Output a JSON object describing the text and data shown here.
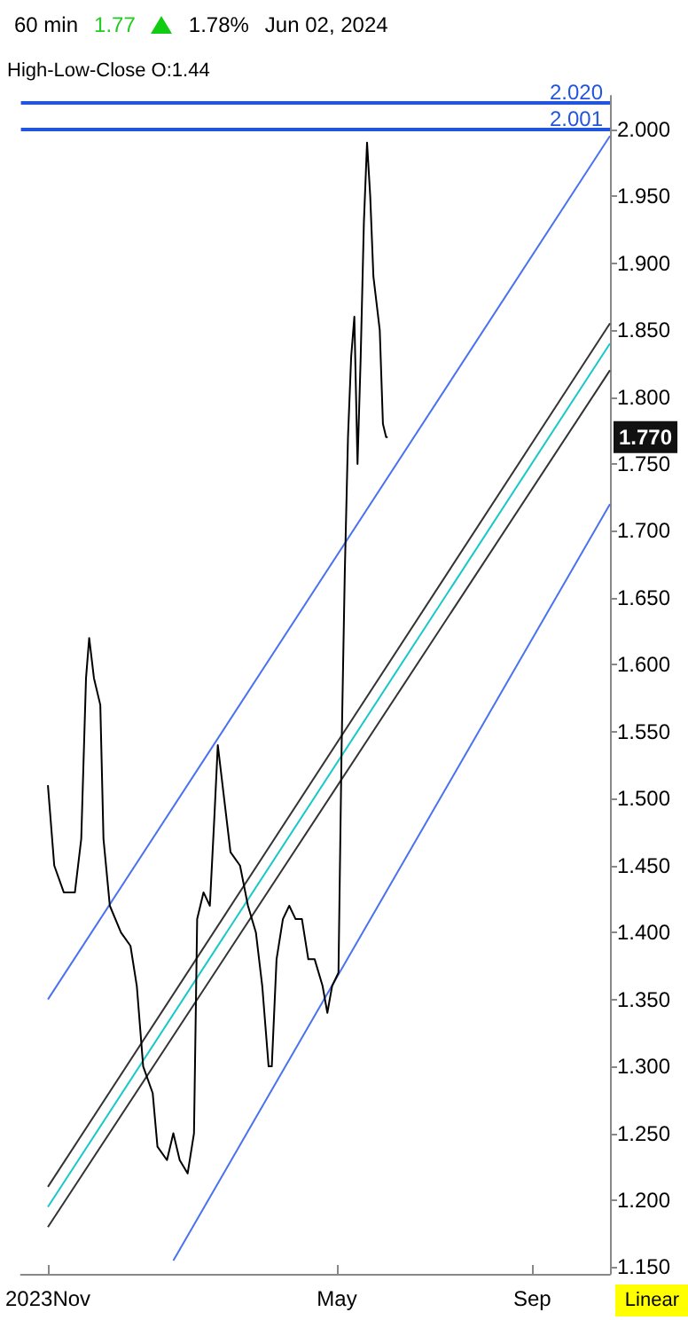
{
  "chart_data": {
    "type": "line",
    "annotations": [
      "60 min",
      "1.77",
      "1.78%",
      "Jun 02, 2024",
      "High-Low-Close",
      "O:1.44",
      "Linear",
      "1.770"
    ],
    "x": [
      "2023-11-01",
      "2023-11-05",
      "2023-11-11",
      "2023-11-18",
      "2023-11-22",
      "2023-11-25",
      "2023-11-27",
      "2023-11-30",
      "2023-12-04",
      "2023-12-06",
      "2023-12-10",
      "2023-12-17",
      "2023-12-23",
      "2023-12-27",
      "2023-12-31",
      "2024-01-06",
      "2024-01-09",
      "2024-01-15",
      "2024-01-19",
      "2024-01-23",
      "2024-01-28",
      "2024-02-01",
      "2024-02-03",
      "2024-02-07",
      "2024-02-11",
      "2024-02-14",
      "2024-02-16",
      "2024-02-20",
      "2024-02-24",
      "2024-03-01",
      "2024-03-06",
      "2024-03-11",
      "2024-03-15",
      "2024-03-19",
      "2024-03-21",
      "2024-03-24",
      "2024-03-28",
      "2024-04-01",
      "2024-04-05",
      "2024-04-09",
      "2024-04-13",
      "2024-04-17",
      "2024-04-22",
      "2024-04-25",
      "2024-04-28",
      "2024-05-02",
      "2024-05-04",
      "2024-05-06",
      "2024-05-08",
      "2024-05-10",
      "2024-05-12",
      "2024-05-14",
      "2024-05-16",
      "2024-05-18",
      "2024-05-20",
      "2024-05-22",
      "2024-05-24",
      "2024-05-26",
      "2024-05-28",
      "2024-05-30",
      "2024-06-01",
      "2024-06-02"
    ],
    "series": [
      {
        "color": "#000000",
        "values": [
          1.51,
          1.45,
          1.43,
          1.43,
          1.47,
          1.59,
          1.62,
          1.59,
          1.57,
          1.47,
          1.42,
          1.4,
          1.39,
          1.36,
          1.3,
          1.28,
          1.24,
          1.23,
          1.25,
          1.23,
          1.22,
          1.25,
          1.41,
          1.43,
          1.42,
          1.49,
          1.54,
          1.5,
          1.46,
          1.45,
          1.42,
          1.4,
          1.36,
          1.3,
          1.3,
          1.38,
          1.41,
          1.42,
          1.41,
          1.41,
          1.38,
          1.38,
          1.36,
          1.34,
          1.36,
          1.37,
          1.54,
          1.67,
          1.77,
          1.83,
          1.86,
          1.75,
          1.83,
          1.93,
          1.99,
          1.95,
          1.89,
          1.87,
          1.85,
          1.78,
          1.77,
          1.77
        ]
      },
      {
        "type": "line",
        "color": "#4a72f0",
        "x": [
          "2023-11-01",
          "2024-10-20"
        ],
        "values": [
          1.35,
          1.995
        ]
      },
      {
        "type": "line",
        "color": "#4a72f0",
        "x": [
          "2024-01-19",
          "2024-10-20"
        ],
        "values": [
          1.155,
          1.72
        ]
      },
      {
        "type": "line",
        "color": "#333333",
        "x": [
          "2023-11-01",
          "2024-10-20"
        ],
        "values": [
          1.21,
          1.855
        ]
      },
      {
        "type": "line",
        "color": "#18c8c8",
        "x": [
          "2023-11-01",
          "2024-10-20"
        ],
        "values": [
          1.195,
          1.84
        ]
      },
      {
        "type": "line",
        "color": "#333333",
        "x": [
          "2023-11-01",
          "2024-10-20"
        ],
        "values": [
          1.18,
          1.82
        ]
      }
    ],
    "xlim": [
      "2023-10-15",
      "2024-10-20"
    ],
    "xticks": [
      {
        "value": "2023-11-01",
        "label": "2023Nov"
      },
      {
        "value": "2024-05-01",
        "label": "May"
      },
      {
        "value": "2024-09-01",
        "label": "Sep"
      }
    ],
    "ylim": [
      1.145,
      2.025
    ],
    "yticks": [
      {
        "value": 1.15,
        "label": "1.150"
      },
      {
        "value": 1.2,
        "label": "1.200"
      },
      {
        "value": 1.25,
        "label": "1.250"
      },
      {
        "value": 1.3,
        "label": "1.300"
      },
      {
        "value": 1.35,
        "label": "1.350"
      },
      {
        "value": 1.4,
        "label": "1.400"
      },
      {
        "value": 1.45,
        "label": "1.450"
      },
      {
        "value": 1.5,
        "label": "1.500"
      },
      {
        "value": 1.55,
        "label": "1.550"
      },
      {
        "value": 1.6,
        "label": "1.600"
      },
      {
        "value": 1.65,
        "label": "1.650"
      },
      {
        "value": 1.7,
        "label": "1.700"
      },
      {
        "value": 1.75,
        "label": "1.750"
      },
      {
        "value": 1.8,
        "label": "1.800"
      },
      {
        "value": 1.85,
        "label": "1.850"
      },
      {
        "value": 1.9,
        "label": "1.900"
      },
      {
        "value": 1.95,
        "label": "1.950"
      },
      {
        "value": 2.0,
        "label": "2.000"
      }
    ],
    "ref_lines": [
      {
        "axis": "y",
        "value": 2.02,
        "label": "2.020",
        "color": "#2255dd"
      },
      {
        "axis": "y",
        "value": 2.001,
        "label": "2.001",
        "color": "#2255dd"
      }
    ],
    "grid": false,
    "marker": "none",
    "line_style": "solid"
  }
}
